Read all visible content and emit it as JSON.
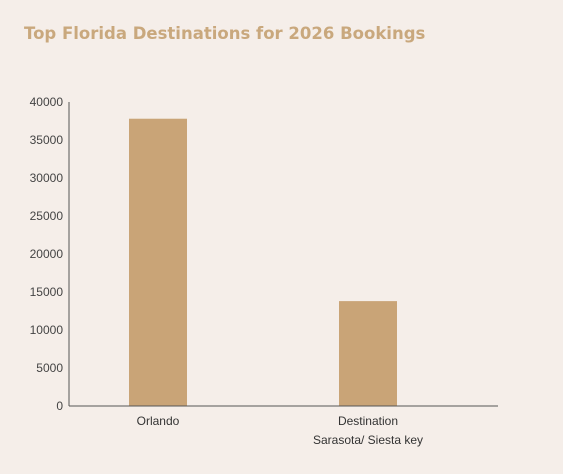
{
  "chart_data": {
    "type": "bar",
    "title": "Top Florida Destinations for 2026 Bookings",
    "categories": [
      "Orlando",
      "Sarasota/ Siesta key"
    ],
    "values": [
      37800,
      13800
    ],
    "xlabel": "Destination",
    "ylabel": "",
    "ylim": [
      0,
      40000
    ],
    "yticks": [
      0,
      5000,
      10000,
      15000,
      20000,
      25000,
      30000,
      35000,
      40000
    ],
    "grid": false,
    "legend": "none",
    "colors": {
      "bar": "#c9a477",
      "title": "#c9a87d",
      "axis": "#555555",
      "background": "#f5eee9"
    }
  }
}
